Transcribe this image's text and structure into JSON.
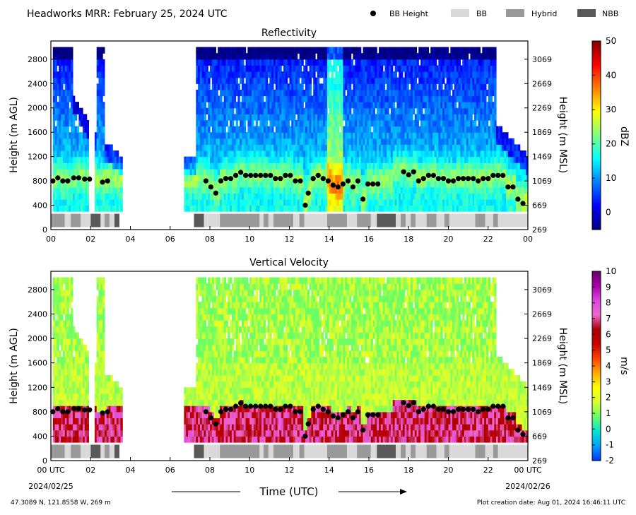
{
  "header": {
    "title": "Headworks MRR:  February 25, 2024 UTC",
    "legend": [
      {
        "label": "BB Height",
        "kind": "marker",
        "color": "#000000"
      },
      {
        "label": "BB",
        "kind": "swatch",
        "color": "#d9d9d9"
      },
      {
        "label": "Hybrid",
        "kind": "swatch",
        "color": "#999999"
      },
      {
        "label": "NBB",
        "kind": "swatch",
        "color": "#595959"
      }
    ]
  },
  "footer": {
    "location": "47.3089 N, 121.8558 W, 269 m",
    "creation": "Plot creation date: Aug 01, 2024 16:46:11 UTC",
    "xlabel": "Time (UTC)",
    "start_date": "2024/02/25",
    "end_date": "2024/02/26"
  },
  "chart_data": [
    {
      "type": "heatmap",
      "title": "Reflectivity",
      "ylabel": "Height (m AGL)",
      "ylabel_right": "Height (m MSL)",
      "ylim": [
        0,
        3100
      ],
      "xlim": [
        0,
        24
      ],
      "yticks": [
        0,
        400,
        800,
        1200,
        1600,
        2000,
        2400,
        2800
      ],
      "yticks_right": [
        "269",
        "669",
        "1069",
        "1469",
        "1869",
        "2269",
        "2669",
        "3069"
      ],
      "xticks": [
        "00",
        "02",
        "04",
        "06",
        "08",
        "10",
        "12",
        "14",
        "16",
        "18",
        "20",
        "22",
        "00"
      ],
      "colorbar": {
        "label": "dBZ",
        "range": [
          -5,
          50
        ],
        "ticks": [
          0,
          10,
          20,
          30,
          40,
          50
        ],
        "colors": [
          "#00007f",
          "#0000ff",
          "#007fff",
          "#00ffff",
          "#7fff7f",
          "#ffff00",
          "#ff7f00",
          "#ff0000",
          "#7f0000"
        ]
      }
    },
    {
      "type": "heatmap",
      "title": "Vertical Velocity",
      "ylabel": "Height (m AGL)",
      "ylabel_right": "Height (m MSL)",
      "ylim": [
        0,
        3100
      ],
      "xlim": [
        0,
        24
      ],
      "yticks": [
        0,
        400,
        800,
        1200,
        1600,
        2000,
        2400,
        2800
      ],
      "yticks_right": [
        "269",
        "669",
        "1069",
        "1469",
        "1869",
        "2269",
        "2669",
        "3069"
      ],
      "xticks": [
        "00 UTC",
        "02",
        "04",
        "06",
        "08",
        "10",
        "12",
        "14",
        "16",
        "18",
        "20",
        "22",
        "00 UTC"
      ],
      "colorbar": {
        "label": "m/s",
        "range": [
          -2,
          10
        ],
        "ticks": [
          -2,
          -1,
          0,
          1,
          2,
          3,
          4,
          5,
          6,
          7,
          8,
          9,
          10
        ],
        "colors": [
          "#0033ff",
          "#00a0ff",
          "#00e5d0",
          "#66ff66",
          "#d6ff33",
          "#ffff00",
          "#ffaa00",
          "#ff4400",
          "#cc0000",
          "#aa0000",
          "#ee66cc",
          "#dd44dd",
          "#aa00aa",
          "#660066"
        ]
      }
    }
  ],
  "bb_height": {
    "times": [
      0.1,
      0.35,
      0.6,
      0.85,
      1.15,
      1.4,
      1.7,
      1.95,
      2.6,
      2.85,
      7.8,
      8.05,
      8.3,
      8.55,
      8.8,
      9.05,
      9.3,
      9.55,
      9.8,
      10.05,
      10.3,
      10.55,
      10.8,
      11.05,
      11.3,
      11.55,
      11.8,
      12.05,
      12.3,
      12.55,
      12.8,
      12.95,
      13.2,
      13.45,
      13.7,
      13.95,
      14.2,
      14.45,
      14.7,
      14.95,
      15.2,
      15.45,
      15.7,
      15.95,
      16.2,
      16.45,
      17.75,
      18.0,
      18.25,
      18.5,
      18.75,
      19.0,
      19.25,
      19.5,
      19.75,
      20.0,
      20.25,
      20.5,
      20.75,
      21.0,
      21.25,
      21.5,
      21.75,
      22.0,
      22.25,
      22.5,
      22.75,
      23.0,
      23.25,
      23.5,
      23.75
    ],
    "heights": [
      800,
      850,
      800,
      800,
      850,
      850,
      830,
      830,
      780,
      800,
      800,
      700,
      600,
      800,
      840,
      840,
      890,
      940,
      890,
      890,
      890,
      890,
      890,
      890,
      840,
      840,
      890,
      890,
      800,
      800,
      400,
      600,
      840,
      890,
      840,
      800,
      730,
      700,
      750,
      800,
      700,
      800,
      500,
      750,
      750,
      750,
      950,
      900,
      950,
      800,
      840,
      890,
      890,
      840,
      840,
      800,
      800,
      840,
      840,
      840,
      840,
      800,
      840,
      840,
      890,
      890,
      890,
      700,
      700,
      500,
      430
    ]
  },
  "bb_type": {
    "segments": [
      {
        "start": 0.0,
        "end": 0.7,
        "type": "Hybrid"
      },
      {
        "start": 0.7,
        "end": 1.0,
        "type": "BB"
      },
      {
        "start": 1.0,
        "end": 1.5,
        "type": "Hybrid"
      },
      {
        "start": 1.5,
        "end": 2.0,
        "type": "BB"
      },
      {
        "start": 2.0,
        "end": 2.5,
        "type": "NBB"
      },
      {
        "start": 2.5,
        "end": 2.7,
        "type": "BB"
      },
      {
        "start": 2.7,
        "end": 2.95,
        "type": "Hybrid"
      },
      {
        "start": 2.95,
        "end": 3.2,
        "type": "BB"
      },
      {
        "start": 3.2,
        "end": 3.45,
        "type": "NBB"
      },
      {
        "start": 7.2,
        "end": 7.7,
        "type": "NBB"
      },
      {
        "start": 7.7,
        "end": 8.5,
        "type": "BB"
      },
      {
        "start": 8.5,
        "end": 10.5,
        "type": "Hybrid"
      },
      {
        "start": 10.5,
        "end": 10.7,
        "type": "BB"
      },
      {
        "start": 10.7,
        "end": 10.95,
        "type": "Hybrid"
      },
      {
        "start": 10.95,
        "end": 11.2,
        "type": "BB"
      },
      {
        "start": 11.2,
        "end": 12.2,
        "type": "Hybrid"
      },
      {
        "start": 12.2,
        "end": 12.5,
        "type": "BB"
      },
      {
        "start": 12.5,
        "end": 12.75,
        "type": "Hybrid"
      },
      {
        "start": 12.75,
        "end": 13.9,
        "type": "BB"
      },
      {
        "start": 13.9,
        "end": 14.9,
        "type": "Hybrid"
      },
      {
        "start": 14.9,
        "end": 15.4,
        "type": "BB"
      },
      {
        "start": 15.4,
        "end": 16.1,
        "type": "Hybrid"
      },
      {
        "start": 16.1,
        "end": 16.4,
        "type": "BB"
      },
      {
        "start": 16.4,
        "end": 17.35,
        "type": "NBB"
      },
      {
        "start": 17.35,
        "end": 17.6,
        "type": "BB"
      },
      {
        "start": 17.6,
        "end": 17.85,
        "type": "Hybrid"
      },
      {
        "start": 17.85,
        "end": 18.1,
        "type": "BB"
      },
      {
        "start": 18.1,
        "end": 18.35,
        "type": "Hybrid"
      },
      {
        "start": 18.35,
        "end": 18.9,
        "type": "BB"
      },
      {
        "start": 18.9,
        "end": 19.4,
        "type": "Hybrid"
      },
      {
        "start": 19.4,
        "end": 19.8,
        "type": "BB"
      },
      {
        "start": 19.8,
        "end": 20.05,
        "type": "Hybrid"
      },
      {
        "start": 20.05,
        "end": 21.35,
        "type": "BB"
      },
      {
        "start": 21.35,
        "end": 21.85,
        "type": "Hybrid"
      },
      {
        "start": 21.85,
        "end": 22.25,
        "type": "BB"
      },
      {
        "start": 22.25,
        "end": 22.5,
        "type": "Hybrid"
      },
      {
        "start": 22.5,
        "end": 24.0,
        "type": "BB"
      }
    ]
  }
}
